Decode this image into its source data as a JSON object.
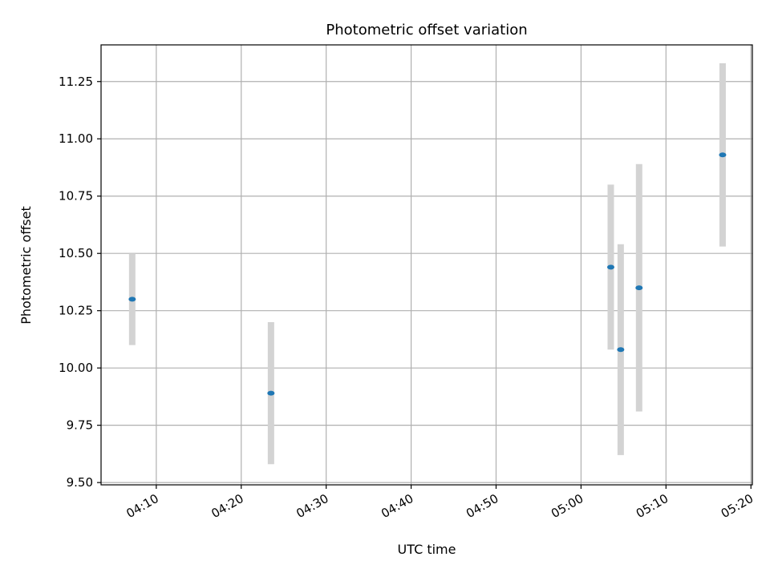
{
  "chart_data": {
    "type": "scatter",
    "title": "Photometric offset variation",
    "xlabel": "UTC time",
    "ylabel": "Photometric offset",
    "xlim": [
      "04:03:30",
      "05:20:10"
    ],
    "ylim": [
      9.49,
      11.41
    ],
    "x_ticks": [
      "04:10",
      "04:20",
      "04:30",
      "04:40",
      "04:50",
      "05:00",
      "05:10",
      "05:20"
    ],
    "y_ticks": [
      "9.50",
      "9.75",
      "10.00",
      "10.25",
      "10.50",
      "10.75",
      "11.00",
      "11.25"
    ],
    "grid": true,
    "series": [
      {
        "marker_color": "#1f77b4",
        "errorbar_color": "#d3d3d3",
        "points": [
          {
            "x": "04:07:10",
            "y": 10.3,
            "yerr": 0.2
          },
          {
            "x": "04:23:30",
            "y": 9.89,
            "yerr": 0.31
          },
          {
            "x": "05:03:30",
            "y": 10.44,
            "yerr": 0.36
          },
          {
            "x": "05:04:40",
            "y": 10.08,
            "yerr": 0.46
          },
          {
            "x": "05:06:50",
            "y": 10.35,
            "yerr": 0.54
          },
          {
            "x": "05:16:40",
            "y": 10.93,
            "yerr": 0.4
          }
        ]
      }
    ]
  }
}
